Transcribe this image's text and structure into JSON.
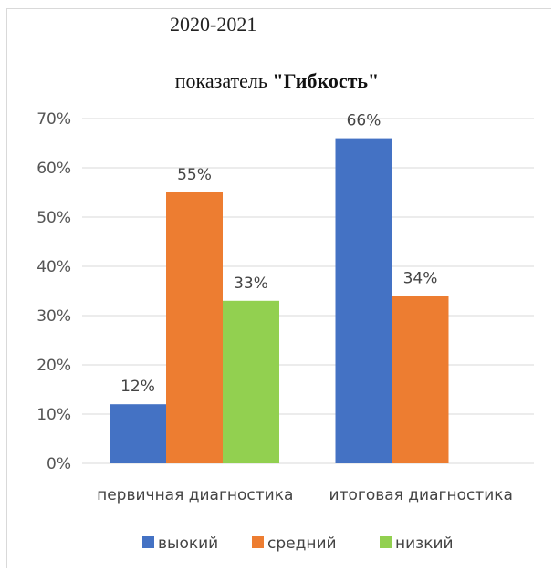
{
  "header": {
    "year": "2020-2021"
  },
  "chart_data": {
    "type": "bar",
    "title_prefix": "показатель ",
    "title_main": "\"Гибкость\"",
    "categories": [
      "первичная диагностика",
      "итоговая диагностика"
    ],
    "series": [
      {
        "name": "выокий",
        "color": "#4472c4",
        "values": [
          12,
          66
        ],
        "labels": [
          "12%",
          "66%"
        ]
      },
      {
        "name": "средний",
        "color": "#ed7d31",
        "values": [
          55,
          34
        ],
        "labels": [
          "55%",
          "34%"
        ]
      },
      {
        "name": "низкий",
        "color": "#92d050",
        "values": [
          33,
          null
        ],
        "labels": [
          "33%",
          ""
        ]
      }
    ],
    "ylim": [
      0,
      70
    ],
    "yticks": [
      0,
      10,
      20,
      30,
      40,
      50,
      60,
      70
    ],
    "ytick_labels": [
      "0%",
      "10%",
      "20%",
      "30%",
      "40%",
      "50%",
      "60%",
      "70%"
    ],
    "grid": true,
    "legend_position": "bottom"
  }
}
